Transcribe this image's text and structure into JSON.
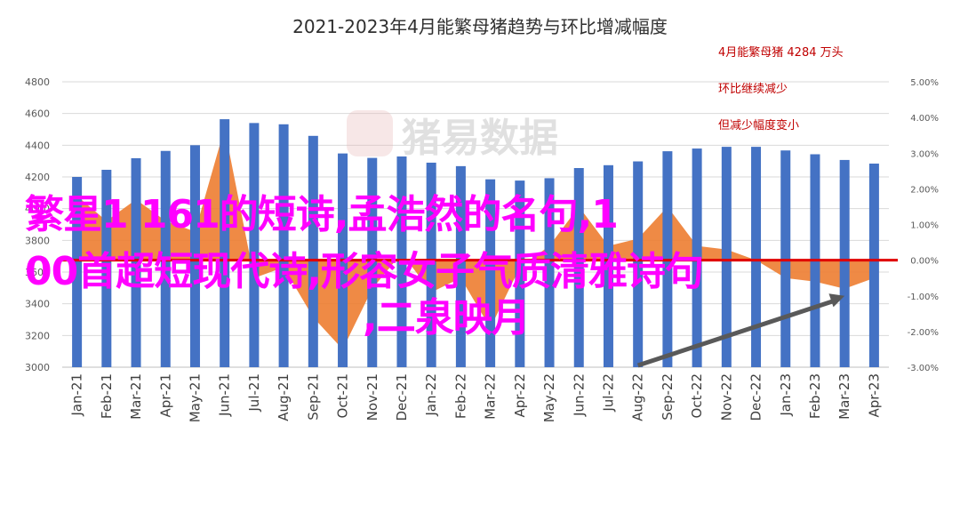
{
  "chart_data": {
    "type": "bar",
    "title": "2021-2023年4月能繁母猪趋势与环比增减幅度",
    "categories": [
      "Jan-21",
      "Feb-21",
      "Mar-21",
      "Apr-21",
      "May-21",
      "Jun-21",
      "Jul-21",
      "Aug-21",
      "Sep-21",
      "Oct-21",
      "Nov-21",
      "Dec-21",
      "Jan-22",
      "Feb-22",
      "Mar-22",
      "Apr-22",
      "May-22",
      "Jun-22",
      "Jul-22",
      "Aug-22",
      "Sep-22",
      "Oct-22",
      "Nov-22",
      "Dec-22",
      "Jan-23",
      "Feb-23",
      "Mar-23",
      "Apr-23"
    ],
    "y_ticks": [
      "3000",
      "3200",
      "3400",
      "3600",
      "3800",
      "4000",
      "4200",
      "4400",
      "4600",
      "4800"
    ],
    "y2_ticks": [
      "5.00%",
      "4.00%",
      "3.00%",
      "2.00%",
      "1.00%",
      "0.00%",
      "-1.00%",
      "-2.00%",
      "-3.00%"
    ],
    "ylim": [
      3000,
      4800
    ],
    "y2lim": [
      -3.0,
      5.0
    ],
    "grid": true,
    "series": [
      {
        "kind": "bar",
        "axis": "left",
        "color": "#4472c4",
        "values": [
          4200,
          4245,
          4318,
          4364,
          4400,
          4564,
          4540,
          4532,
          4459,
          4348,
          4320,
          4329,
          4290,
          4268,
          4185,
          4177,
          4192,
          4256,
          4274,
          4298,
          4362,
          4379,
          4390,
          4390,
          4367,
          4343,
          4307,
          4284
        ]
      },
      {
        "kind": "area",
        "axis": "right",
        "color": "#ed7d31",
        "values": [
          1.8,
          1.1,
          1.7,
          1.1,
          0.8,
          3.7,
          -0.5,
          -0.2,
          -1.6,
          -2.5,
          -0.8,
          0.2,
          -0.9,
          -0.5,
          -1.9,
          -0.2,
          0.4,
          1.5,
          0.4,
          0.6,
          1.5,
          0.4,
          0.3,
          0.0,
          -0.5,
          -0.6,
          -0.8,
          -0.5
        ]
      }
    ],
    "annotations": [
      "4月能繁母猪 4284 万头",
      "环比继续减少",
      "但减少幅度变小"
    ],
    "watermark": "猪易数据",
    "reference_line_color": "#e00000",
    "arrow_color": "#595959"
  },
  "overlay": {
    "lines": [
      "繁星1 161的短诗,孟浩然的名句,1",
      "00首超短现代诗,形容女子气质清雅诗句",
      ",二泉映月"
    ],
    "color": "#ff00ff"
  }
}
